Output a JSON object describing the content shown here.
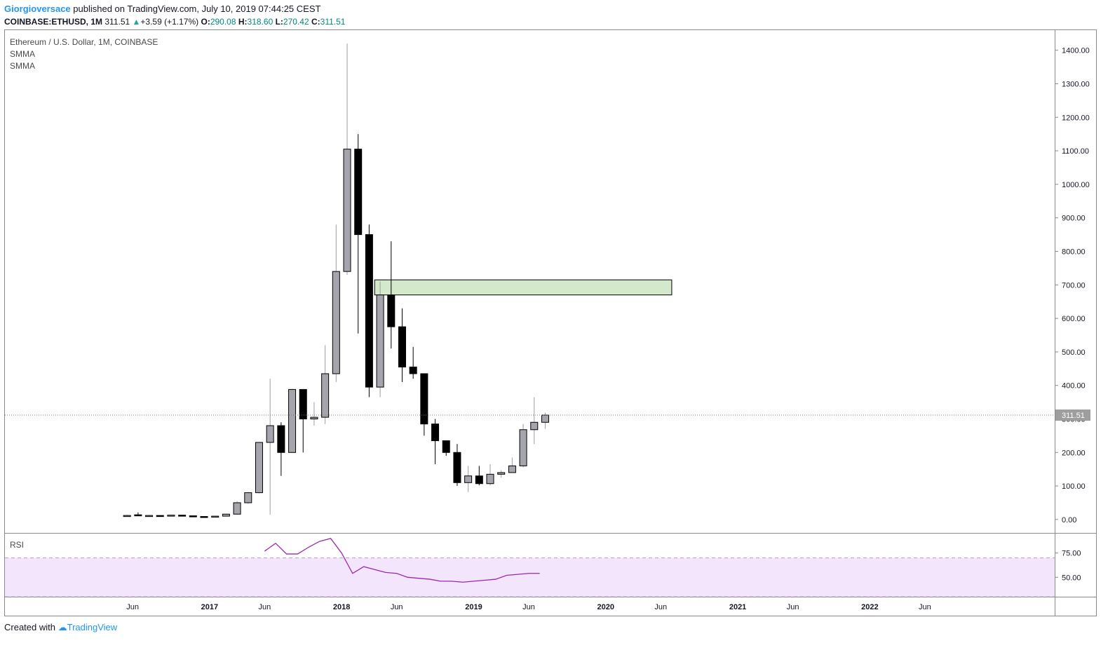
{
  "header": {
    "author": "Giorgioversace",
    "published": "published on TradingView.com, July 10, 2019 07:44:25 CEST",
    "symbol": "COINBASE:ETHUSD, 1M",
    "last": "311.51",
    "change": "+3.59 (+1.17%)",
    "o_label": "O:",
    "o": "290.08",
    "h_label": "H:",
    "h": "318.60",
    "l_label": "L:",
    "l": "270.42",
    "c_label": "C:",
    "c": "311.51"
  },
  "footer": {
    "created_with": "Created with",
    "brand": "TradingView"
  },
  "chart_data": {
    "type": "candlestick",
    "title": "Ethereum / U.S. Dollar, 1M, COINBASE",
    "indicators": [
      "SMMA",
      "SMMA"
    ],
    "y_ticks": [
      "0.00",
      "100.00",
      "200.00",
      "300.00",
      "400.00",
      "500.00",
      "600.00",
      "700.00",
      "800.00",
      "900.00",
      "1000.00",
      "1100.00",
      "1200.00",
      "1300.00",
      "1400.00"
    ],
    "ylim": [
      -40,
      1460
    ],
    "last_price_label": "311.51",
    "last_price": 311.51,
    "x_ticks": [
      {
        "label": "Jun",
        "t": 2016.417,
        "bold": false
      },
      {
        "label": "2017",
        "t": 2017.0,
        "bold": true
      },
      {
        "label": "Jun",
        "t": 2017.417,
        "bold": false
      },
      {
        "label": "2018",
        "t": 2018.0,
        "bold": true
      },
      {
        "label": "Jun",
        "t": 2018.417,
        "bold": false
      },
      {
        "label": "2019",
        "t": 2019.0,
        "bold": true
      },
      {
        "label": "Jun",
        "t": 2019.417,
        "bold": false
      },
      {
        "label": "2020",
        "t": 2020.0,
        "bold": true
      },
      {
        "label": "Jun",
        "t": 2020.417,
        "bold": false
      },
      {
        "label": "2021",
        "t": 2021.0,
        "bold": true
      },
      {
        "label": "Jun",
        "t": 2021.417,
        "bold": false
      },
      {
        "label": "2022",
        "t": 2022.0,
        "bold": true
      },
      {
        "label": "Jun",
        "t": 2022.417,
        "bold": false
      }
    ],
    "candles": [
      {
        "d": "2016-05",
        "o": 10,
        "h": 14,
        "l": 9,
        "c": 12
      },
      {
        "d": "2016-06",
        "o": 14,
        "h": 21,
        "l": 10,
        "c": 12
      },
      {
        "d": "2016-07",
        "o": 12,
        "h": 14,
        "l": 10,
        "c": 12
      },
      {
        "d": "2016-08",
        "o": 12,
        "h": 12,
        "l": 10,
        "c": 11
      },
      {
        "d": "2016-09",
        "o": 11,
        "h": 14,
        "l": 11,
        "c": 13
      },
      {
        "d": "2016-10",
        "o": 13,
        "h": 13,
        "l": 11,
        "c": 11
      },
      {
        "d": "2016-11",
        "o": 11,
        "h": 11,
        "l": 8,
        "c": 9
      },
      {
        "d": "2016-12",
        "o": 9,
        "h": 9,
        "l": 6,
        "c": 8
      },
      {
        "d": "2017-01",
        "o": 8,
        "h": 11,
        "l": 8,
        "c": 10
      },
      {
        "d": "2017-02",
        "o": 10,
        "h": 17,
        "l": 10,
        "c": 16
      },
      {
        "d": "2017-03",
        "o": 16,
        "h": 55,
        "l": 15,
        "c": 50
      },
      {
        "d": "2017-04",
        "o": 50,
        "h": 82,
        "l": 47,
        "c": 80
      },
      {
        "d": "2017-05",
        "o": 80,
        "h": 230,
        "l": 78,
        "c": 230
      },
      {
        "d": "2017-06",
        "o": 230,
        "h": 420,
        "l": 14,
        "c": 280
      },
      {
        "d": "2017-07",
        "o": 280,
        "h": 290,
        "l": 130,
        "c": 200
      },
      {
        "d": "2017-08",
        "o": 200,
        "h": 390,
        "l": 200,
        "c": 388
      },
      {
        "d": "2017-09",
        "o": 388,
        "h": 388,
        "l": 200,
        "c": 300
      },
      {
        "d": "2017-10",
        "o": 300,
        "h": 350,
        "l": 280,
        "c": 305
      },
      {
        "d": "2017-11",
        "o": 305,
        "h": 520,
        "l": 285,
        "c": 435
      },
      {
        "d": "2017-12",
        "o": 435,
        "h": 880,
        "l": 410,
        "c": 740
      },
      {
        "d": "2018-01",
        "o": 740,
        "h": 1420,
        "l": 730,
        "c": 1105
      },
      {
        "d": "2018-02",
        "o": 1105,
        "h": 1150,
        "l": 555,
        "c": 850
      },
      {
        "d": "2018-03",
        "o": 850,
        "h": 880,
        "l": 365,
        "c": 395
      },
      {
        "d": "2018-04",
        "o": 395,
        "h": 710,
        "l": 365,
        "c": 670
      },
      {
        "d": "2018-05",
        "o": 670,
        "h": 830,
        "l": 510,
        "c": 575
      },
      {
        "d": "2018-06",
        "o": 575,
        "h": 630,
        "l": 410,
        "c": 455
      },
      {
        "d": "2018-07",
        "o": 455,
        "h": 515,
        "l": 420,
        "c": 435
      },
      {
        "d": "2018-08",
        "o": 435,
        "h": 435,
        "l": 250,
        "c": 285
      },
      {
        "d": "2018-09",
        "o": 285,
        "h": 300,
        "l": 165,
        "c": 235
      },
      {
        "d": "2018-10",
        "o": 235,
        "h": 235,
        "l": 190,
        "c": 200
      },
      {
        "d": "2018-11",
        "o": 200,
        "h": 225,
        "l": 100,
        "c": 110
      },
      {
        "d": "2018-12",
        "o": 110,
        "h": 160,
        "l": 82,
        "c": 130
      },
      {
        "d": "2019-01",
        "o": 130,
        "h": 160,
        "l": 102,
        "c": 107
      },
      {
        "d": "2019-02",
        "o": 107,
        "h": 165,
        "l": 102,
        "c": 135
      },
      {
        "d": "2019-03",
        "o": 135,
        "h": 147,
        "l": 125,
        "c": 140
      },
      {
        "d": "2019-04",
        "o": 140,
        "h": 185,
        "l": 140,
        "c": 160
      },
      {
        "d": "2019-05",
        "o": 160,
        "h": 285,
        "l": 155,
        "c": 268
      },
      {
        "d": "2019-06",
        "o": 268,
        "h": 365,
        "l": 225,
        "c": 290
      },
      {
        "d": "2019-07",
        "o": 290,
        "h": 318.6,
        "l": 270.42,
        "c": 311.51
      }
    ],
    "zone": {
      "t_start": 2018.25,
      "t_end": 2020.5,
      "low": 670,
      "high": 715,
      "color": "#d4e8cc"
    },
    "rsi": {
      "label": "RSI",
      "y_ticks": [
        "75.00",
        "50.00"
      ],
      "ylim": [
        30,
        95
      ],
      "band": [
        30,
        70
      ],
      "color": "#9c27b0",
      "band_color": "#f3e5fc",
      "t": [
        2017.417,
        2017.5,
        2017.583,
        2017.667,
        2017.75,
        2017.833,
        2017.917,
        2018.0,
        2018.083,
        2018.167,
        2018.25,
        2018.333,
        2018.417,
        2018.5,
        2018.583,
        2018.667,
        2018.75,
        2018.833,
        2018.917,
        2019.0,
        2019.083,
        2019.167,
        2019.25,
        2019.333,
        2019.417,
        2019.5
      ],
      "values": [
        77,
        85,
        74,
        74,
        81,
        87,
        90,
        75,
        54,
        61,
        58,
        55,
        54,
        50,
        49,
        48,
        46,
        46,
        45,
        46,
        47,
        48,
        52,
        53,
        54,
        54
      ]
    },
    "time_range": [
      2015.45,
      2023.4
    ]
  }
}
